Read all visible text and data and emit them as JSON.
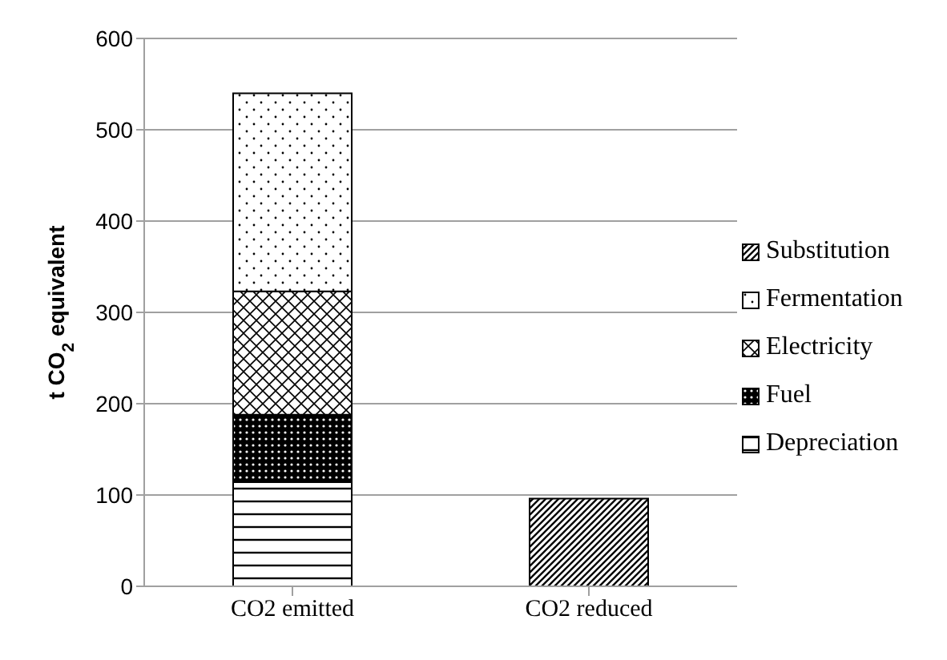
{
  "chart_data": {
    "type": "bar",
    "stacked": true,
    "ylabel": "t CO$_{2}$ equivalent",
    "categories": [
      "CO2 emitted",
      "CO2 reduced"
    ],
    "series": [
      {
        "name": "Depreciation",
        "color": "#000000",
        "values": [
          114,
          null
        ]
      },
      {
        "name": "Fuel",
        "color": "#000000",
        "values": [
          74,
          null
        ]
      },
      {
        "name": "Electricity",
        "color": "#000000",
        "values": [
          135,
          null
        ]
      },
      {
        "name": "Fermentation",
        "color": "#000000",
        "values": [
          217,
          null
        ]
      },
      {
        "name": "Substitution",
        "color": "#000000",
        "values": [
          null,
          96
        ]
      }
    ],
    "ylim": [
      0,
      600
    ],
    "yticks": [
      0,
      100,
      200,
      300,
      400,
      500,
      600
    ],
    "grid": "y",
    "legend": "right"
  }
}
